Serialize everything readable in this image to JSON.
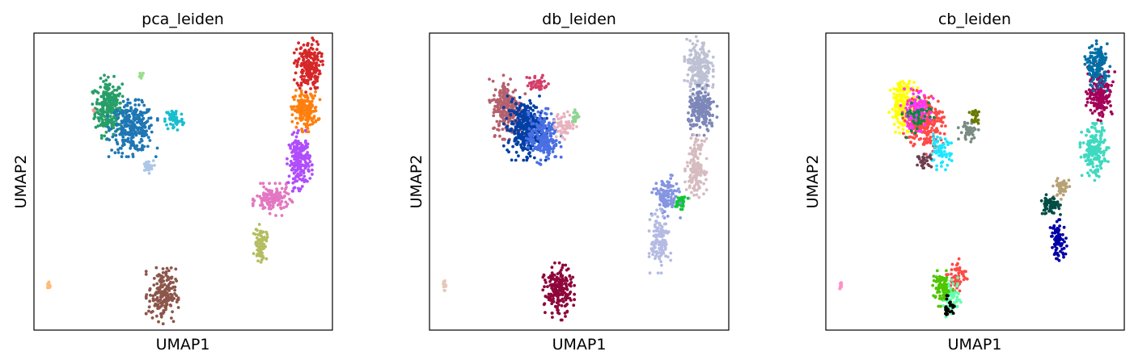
{
  "chart_data": [
    {
      "type": "scatter",
      "title": "pca_leiden",
      "xlabel": "UMAP1",
      "ylabel": "UMAP2",
      "xticks": [],
      "yticks": [],
      "grid": false,
      "legend": "none",
      "xlim": [
        0,
        10
      ],
      "ylim": [
        0,
        10
      ],
      "clusters": [
        {
          "color": "#279e68",
          "cx": 2.5,
          "cy": 7.5,
          "rx": 0.45,
          "ry": 0.9,
          "n": 260
        },
        {
          "color": "#1f77b4",
          "cx": 3.3,
          "cy": 6.8,
          "rx": 0.7,
          "ry": 0.8,
          "n": 300
        },
        {
          "color": "#aec7e8",
          "cx": 3.8,
          "cy": 5.5,
          "rx": 0.2,
          "ry": 0.2,
          "n": 30
        },
        {
          "color": "#17becf",
          "cx": 4.7,
          "cy": 7.1,
          "rx": 0.3,
          "ry": 0.4,
          "n": 60
        },
        {
          "color": "#98df8a",
          "cx": 3.6,
          "cy": 8.6,
          "rx": 0.1,
          "ry": 0.1,
          "n": 10
        },
        {
          "color": "#ff9896",
          "cx": 2.0,
          "cy": 7.4,
          "rx": 0.05,
          "ry": 0.05,
          "n": 4
        },
        {
          "color": "#d62728",
          "cx": 9.2,
          "cy": 8.9,
          "rx": 0.4,
          "ry": 0.8,
          "n": 200
        },
        {
          "color": "#ff7f0e",
          "cx": 9.1,
          "cy": 7.4,
          "rx": 0.4,
          "ry": 0.6,
          "n": 180
        },
        {
          "color": "#b04dfc",
          "cx": 8.9,
          "cy": 5.7,
          "rx": 0.35,
          "ry": 0.85,
          "n": 200
        },
        {
          "color": "#e377c2",
          "cx": 8.0,
          "cy": 4.4,
          "rx": 0.55,
          "ry": 0.45,
          "n": 130
        },
        {
          "color": "#b5bd61",
          "cx": 7.6,
          "cy": 2.9,
          "rx": 0.2,
          "ry": 0.55,
          "n": 80
        },
        {
          "color": "#8c564b",
          "cx": 4.3,
          "cy": 1.2,
          "rx": 0.45,
          "ry": 0.85,
          "n": 190
        },
        {
          "color": "#ffbb78",
          "cx": 0.5,
          "cy": 1.5,
          "rx": 0.05,
          "ry": 0.15,
          "n": 12
        }
      ]
    },
    {
      "type": "scatter",
      "title": "db_leiden",
      "xlabel": "UMAP1",
      "ylabel": "UMAP2",
      "xticks": [],
      "yticks": [],
      "grid": false,
      "legend": "none",
      "xlim": [
        0,
        10
      ],
      "ylim": [
        0,
        10
      ],
      "clusters": [
        {
          "color": "#b5606d",
          "cx": 2.6,
          "cy": 7.5,
          "rx": 0.5,
          "ry": 0.9,
          "n": 230
        },
        {
          "color": "#023fa5",
          "cx": 3.2,
          "cy": 6.8,
          "rx": 0.6,
          "ry": 0.9,
          "n": 330
        },
        {
          "color": "#4a6fe3",
          "cx": 3.8,
          "cy": 6.5,
          "rx": 0.5,
          "ry": 0.8,
          "n": 200
        },
        {
          "color": "#e8b3be",
          "cx": 4.5,
          "cy": 6.9,
          "rx": 0.35,
          "ry": 0.4,
          "n": 60
        },
        {
          "color": "#8dd593",
          "cx": 4.9,
          "cy": 7.2,
          "rx": 0.15,
          "ry": 0.2,
          "n": 20
        },
        {
          "color": "#d33f6a",
          "cx": 3.6,
          "cy": 8.3,
          "rx": 0.35,
          "ry": 0.3,
          "n": 40
        },
        {
          "color": "#bec1d4",
          "cx": 9.0,
          "cy": 8.8,
          "rx": 0.4,
          "ry": 0.9,
          "n": 220
        },
        {
          "color": "#7d87b9",
          "cx": 9.1,
          "cy": 7.4,
          "rx": 0.45,
          "ry": 0.7,
          "n": 200
        },
        {
          "color": "#d6bcc0",
          "cx": 8.9,
          "cy": 5.5,
          "rx": 0.3,
          "ry": 0.9,
          "n": 150
        },
        {
          "color": "#11c638",
          "cx": 8.4,
          "cy": 4.3,
          "rx": 0.2,
          "ry": 0.2,
          "n": 40
        },
        {
          "color": "#8595e1",
          "cx": 7.9,
          "cy": 4.5,
          "rx": 0.4,
          "ry": 0.6,
          "n": 120
        },
        {
          "color": "#b5bbe3",
          "cx": 7.7,
          "cy": 3.0,
          "rx": 0.3,
          "ry": 0.9,
          "n": 130
        },
        {
          "color": "#8e063b",
          "cx": 4.3,
          "cy": 1.3,
          "rx": 0.45,
          "ry": 0.8,
          "n": 200
        },
        {
          "color": "#e6c8b8",
          "cx": 0.5,
          "cy": 1.5,
          "rx": 0.05,
          "ry": 0.15,
          "n": 12
        }
      ]
    },
    {
      "type": "scatter",
      "title": "cb_leiden",
      "xlabel": "UMAP1",
      "ylabel": "UMAP2",
      "xticks": [],
      "yticks": [],
      "grid": false,
      "legend": "none",
      "xlim": [
        0,
        10
      ],
      "ylim": [
        0,
        10
      ],
      "clusters": [
        {
          "color": "#ffff00",
          "cx": 2.6,
          "cy": 7.6,
          "rx": 0.4,
          "ry": 0.8,
          "n": 180
        },
        {
          "color": "#ff4a46",
          "cx": 3.3,
          "cy": 7.0,
          "rx": 0.6,
          "ry": 0.9,
          "n": 250
        },
        {
          "color": "#ff34ff",
          "cx": 3.0,
          "cy": 7.4,
          "rx": 0.5,
          "ry": 0.6,
          "n": 100
        },
        {
          "color": "#1ce6ff",
          "cx": 3.8,
          "cy": 6.0,
          "rx": 0.4,
          "ry": 0.5,
          "n": 60
        },
        {
          "color": "#008941",
          "cx": 3.1,
          "cy": 7.2,
          "rx": 0.5,
          "ry": 0.6,
          "n": 40
        },
        {
          "color": "#6f3d4f",
          "cx": 3.3,
          "cy": 5.7,
          "rx": 0.25,
          "ry": 0.2,
          "n": 30
        },
        {
          "color": "#7a8b84",
          "cx": 4.8,
          "cy": 6.7,
          "rx": 0.3,
          "ry": 0.3,
          "n": 40
        },
        {
          "color": "#6b7900",
          "cx": 5.0,
          "cy": 7.2,
          "rx": 0.2,
          "ry": 0.3,
          "n": 25
        },
        {
          "color": "#a30059",
          "cx": 9.2,
          "cy": 8.0,
          "rx": 0.4,
          "ry": 0.8,
          "n": 180
        },
        {
          "color": "#006fa6",
          "cx": 9.1,
          "cy": 8.9,
          "rx": 0.35,
          "ry": 0.7,
          "n": 150
        },
        {
          "color": "#3fd9c0",
          "cx": 9.0,
          "cy": 6.0,
          "rx": 0.4,
          "ry": 0.8,
          "n": 180
        },
        {
          "color": "#b7a176",
          "cx": 7.9,
          "cy": 4.8,
          "rx": 0.25,
          "ry": 0.35,
          "n": 50
        },
        {
          "color": "#004d43",
          "cx": 7.5,
          "cy": 4.2,
          "rx": 0.3,
          "ry": 0.3,
          "n": 60
        },
        {
          "color": "#0000a6",
          "cx": 7.8,
          "cy": 3.0,
          "rx": 0.25,
          "ry": 0.6,
          "n": 80
        },
        {
          "color": "#ff4a46",
          "cx": 4.4,
          "cy": 1.8,
          "rx": 0.3,
          "ry": 0.5,
          "n": 60
        },
        {
          "color": "#63ffac",
          "cx": 4.2,
          "cy": 1.1,
          "rx": 0.3,
          "ry": 0.55,
          "n": 80
        },
        {
          "color": "#4fc601",
          "cx": 3.9,
          "cy": 1.4,
          "rx": 0.3,
          "ry": 0.5,
          "n": 80
        },
        {
          "color": "#000000",
          "cx": 4.1,
          "cy": 0.8,
          "rx": 0.2,
          "ry": 0.3,
          "n": 25
        },
        {
          "color": "#ff90c9",
          "cx": 0.5,
          "cy": 1.5,
          "rx": 0.05,
          "ry": 0.15,
          "n": 12
        }
      ]
    }
  ]
}
